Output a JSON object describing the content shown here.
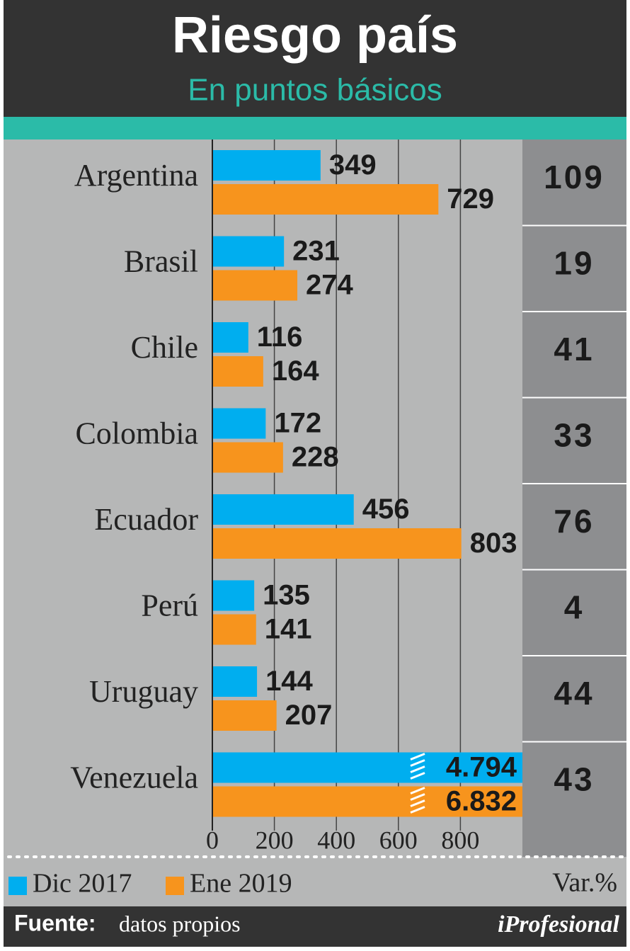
{
  "chart_data": {
    "type": "bar",
    "orientation": "horizontal",
    "title": "Riesgo país",
    "subtitle": "En puntos básicos",
    "categories": [
      "Argentina",
      "Brasil",
      "Chile",
      "Colombia",
      "Ecuador",
      "Perú",
      "Uruguay",
      "Venezuela"
    ],
    "series": [
      {
        "name": "Dic 2017",
        "color": "#00aeef",
        "values": [
          349,
          231,
          116,
          172,
          456,
          135,
          144,
          4794
        ],
        "value_labels": [
          "349",
          "231",
          "116",
          "172",
          "456",
          "135",
          "144",
          "4.794"
        ]
      },
      {
        "name": "Ene 2019",
        "color": "#f7941d",
        "values": [
          729,
          274,
          164,
          228,
          803,
          141,
          207,
          6832
        ],
        "value_labels": [
          "729",
          "274",
          "164",
          "228",
          "803",
          "141",
          "207",
          "6.832"
        ]
      }
    ],
    "xlim": [
      0,
      1000
    ],
    "xticks": [
      0,
      200,
      400,
      600,
      800
    ],
    "grid": true,
    "var_label": "Var.%",
    "var_values": [
      109,
      19,
      41,
      33,
      76,
      4,
      44,
      43
    ],
    "source_label": "Fuente:",
    "source": "datos propios",
    "brand": "iProfesional"
  }
}
